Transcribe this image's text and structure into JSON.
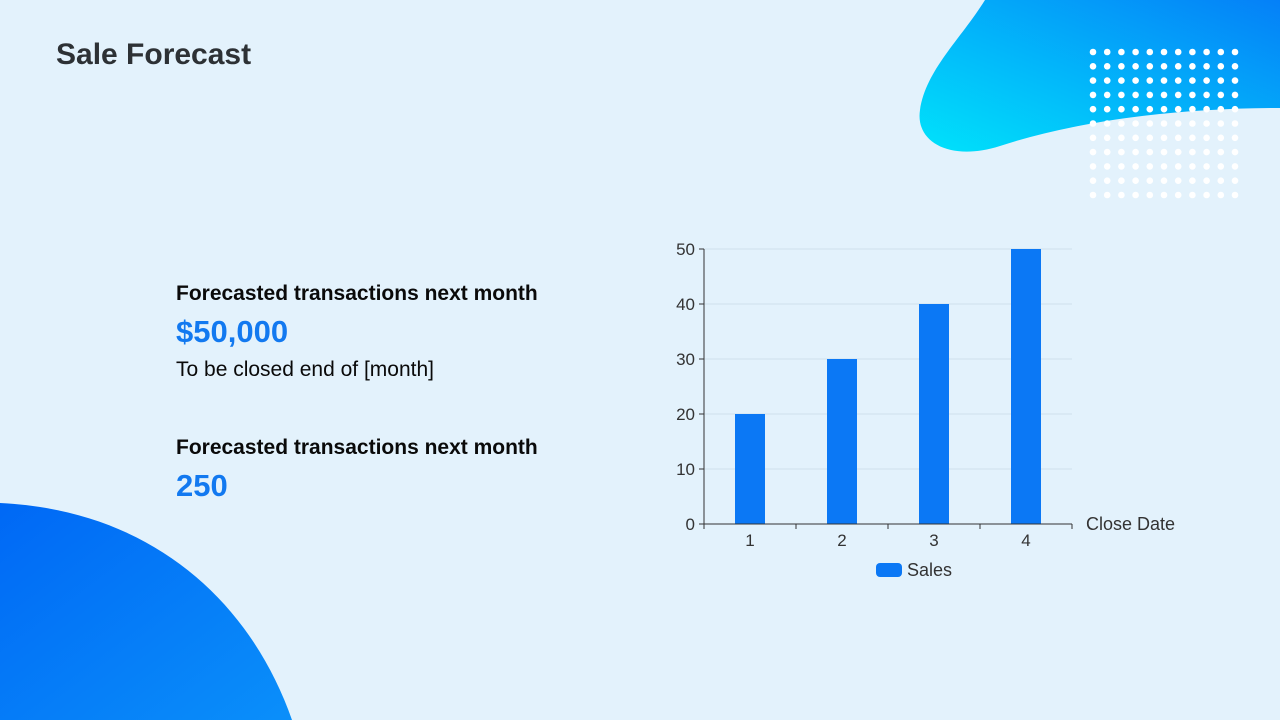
{
  "slide": {
    "title": "Sale Forecast"
  },
  "kpis": [
    {
      "label": "Forecasted transactions next month",
      "value": "$50,000",
      "note": "To be closed end of [month]"
    },
    {
      "label": "Forecasted transactions next month",
      "value": "250"
    }
  ],
  "colors": {
    "background": "#e3f2fc",
    "accent": "#1279f0",
    "bar": "#0b78f5",
    "blob_cyan": "#00e3fb",
    "blob_blue": "#0165f7"
  },
  "chart_data": {
    "type": "bar",
    "categories": [
      "1",
      "2",
      "3",
      "4"
    ],
    "series": [
      {
        "name": "Sales",
        "values": [
          20,
          30,
          40,
          50
        ]
      }
    ],
    "xlabel": "Close Date",
    "ylabel": "",
    "ylim": [
      0,
      50
    ],
    "yticks": [
      0,
      10,
      20,
      30,
      40,
      50
    ],
    "grid": true,
    "legend": "bottom-center"
  }
}
